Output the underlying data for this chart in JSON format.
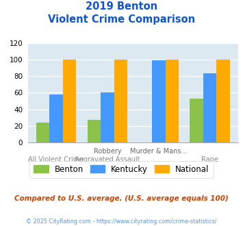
{
  "title_line1": "2019 Benton",
  "title_line2": "Violent Crime Comparison",
  "benton_vals": [
    24,
    27,
    0,
    53
  ],
  "kentucky_vals": [
    58,
    60,
    99,
    83
  ],
  "national_vals": [
    100,
    100,
    100,
    100
  ],
  "benton_color": "#8bc34a",
  "kentucky_color": "#4499ff",
  "national_color": "#ffaa00",
  "ylim": [
    0,
    120
  ],
  "yticks": [
    0,
    20,
    40,
    60,
    80,
    100,
    120
  ],
  "bg_color": "#dce9f0",
  "title_color": "#1155cc",
  "top_labels": [
    "",
    "Robbery",
    "Murder & Mans...",
    ""
  ],
  "bottom_labels": [
    "All Violent Crime",
    "Aggravated Assault",
    "",
    "Rape"
  ],
  "legend_labels": [
    "Benton",
    "Kentucky",
    "National"
  ],
  "footer_text": "Compared to U.S. average. (U.S. average equals 100)",
  "footer_color": "#cc4400",
  "copyright_text": "© 2025 CityRating.com - https://www.cityrating.com/crime-statistics/",
  "copyright_color": "#4499ff"
}
